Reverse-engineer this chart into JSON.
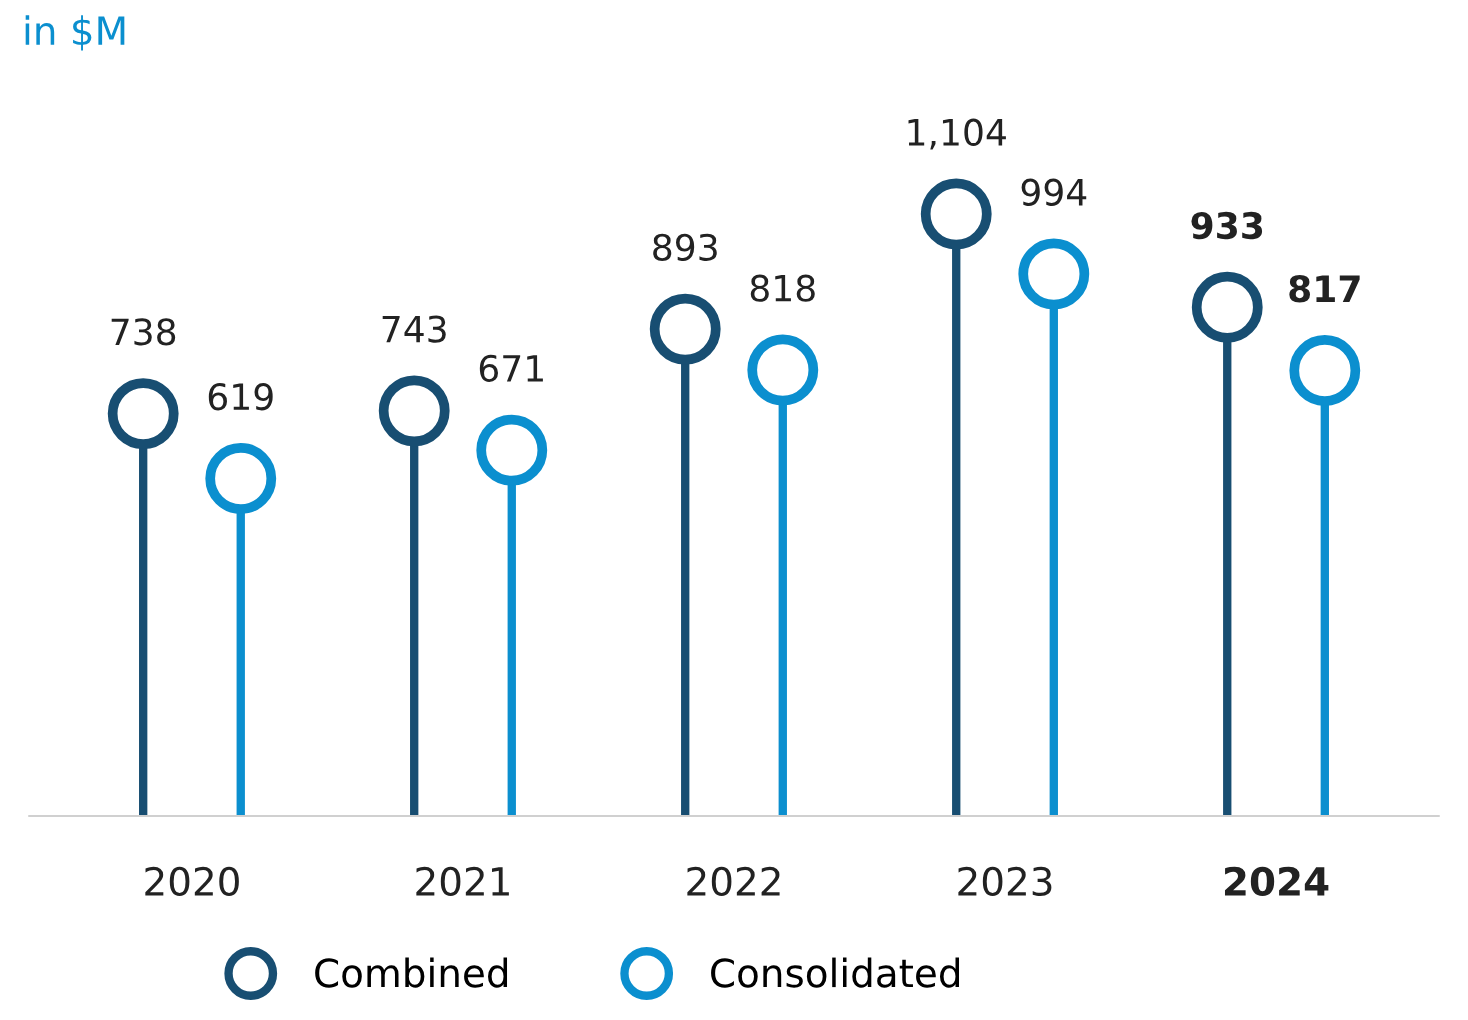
{
  "chart_data": {
    "type": "lollipop",
    "title": "in $M",
    "categories": [
      "2020",
      "2021",
      "2022",
      "2023",
      "2024"
    ],
    "series": [
      {
        "name": "Combined",
        "color": "#184e72",
        "values": [
          738,
          743,
          893,
          1104,
          933
        ],
        "value_labels": [
          "738",
          "743",
          "893",
          "1,104",
          "933"
        ]
      },
      {
        "name": "Consolidated",
        "color": "#0b8fcf",
        "values": [
          619,
          671,
          818,
          994,
          817
        ],
        "value_labels": [
          "619",
          "671",
          "818",
          "994",
          "817"
        ]
      }
    ],
    "legend": "bottom",
    "marker": "circle",
    "grid": false
  }
}
